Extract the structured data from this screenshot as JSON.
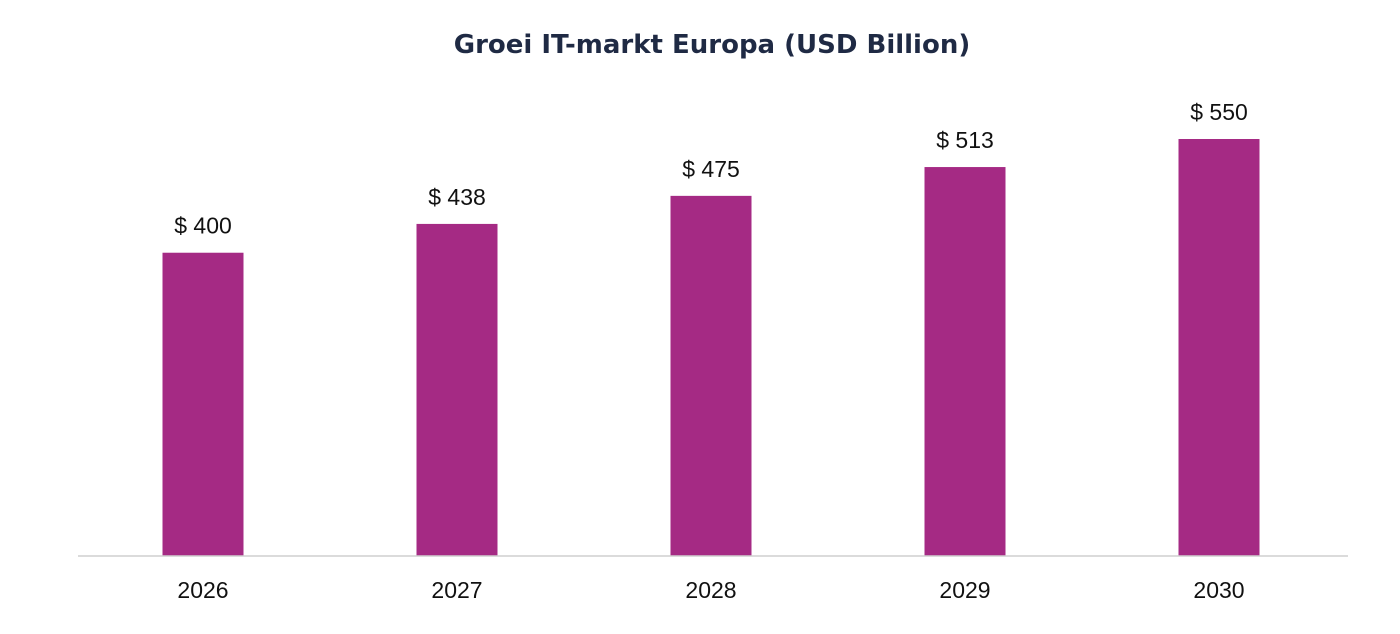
{
  "chart_data": {
    "type": "bar",
    "title": "Groei IT-markt Europa (USD Billion)",
    "xlabel": "",
    "ylabel": "",
    "categories": [
      "2026",
      "2027",
      "2028",
      "2029",
      "2030"
    ],
    "values": [
      400,
      438,
      475,
      513,
      550
    ],
    "value_labels": [
      "$ 400",
      "$ 438",
      "$ 475",
      "$ 513",
      "$ 550"
    ],
    "ylim": [
      0,
      550
    ],
    "grid": false,
    "legend": "none",
    "bar_color": "#a52a84"
  }
}
